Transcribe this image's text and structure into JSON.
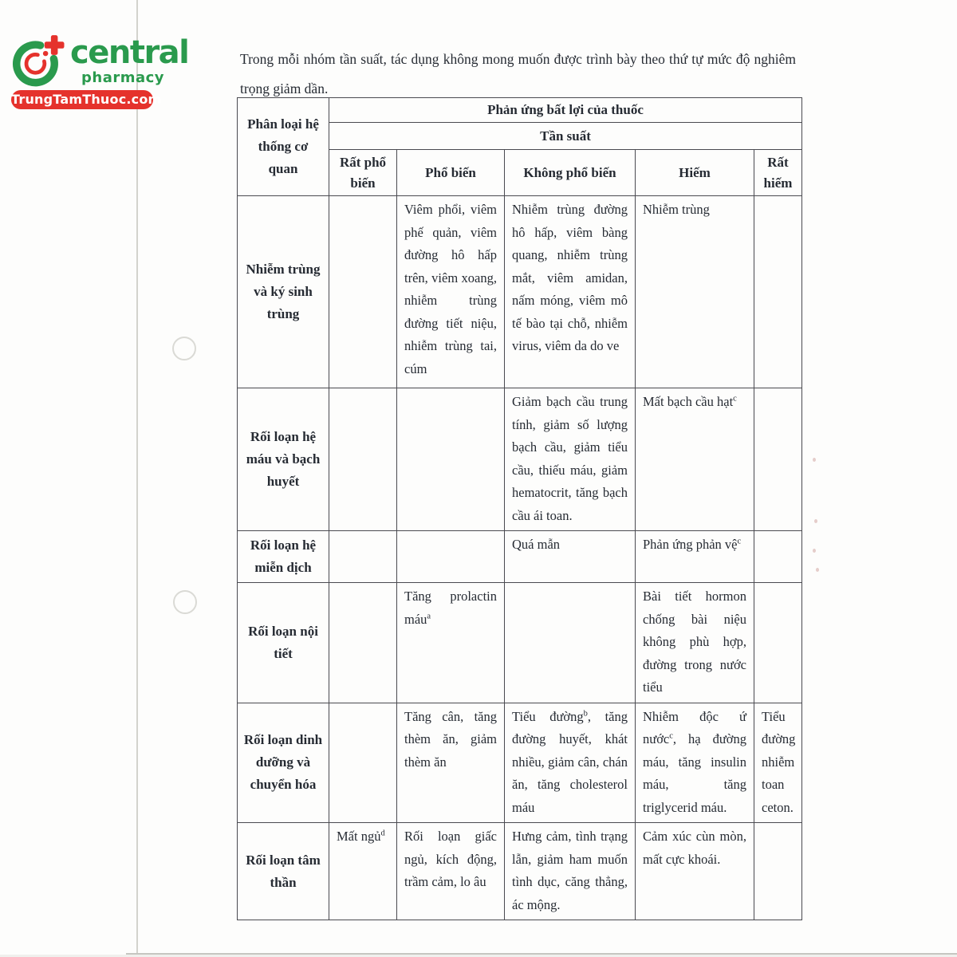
{
  "watermark": {
    "brand": "central",
    "brand_sub": "pharmacy",
    "badge": "TrungTamThuoc.com",
    "icon": "central-pharmacy-ring-plus-icon"
  },
  "colors": {
    "brand_green": "#2a9a4d",
    "brand_red": "#e5322c",
    "text": "#262b33",
    "table_border": "#4a4a50"
  },
  "intro": "Trong mỗi nhóm tần suất, tác dụng không mong muốn được trình bày theo thứ tự mức độ nghiêm trọng giảm dần.",
  "table": {
    "organ_col_header": "Phân loại hệ thống cơ quan",
    "adr_header": "Phản ứng bất lợi của thuốc",
    "frequency_header": "Tần suất",
    "frequency_columns": [
      "Rất phổ biến",
      "Phổ biến",
      "Không phổ biến",
      "Hiếm",
      "Rất hiếm"
    ],
    "rows": [
      {
        "category": "Nhiễm trùng và ký sinh trùng",
        "cells": [
          [],
          [
            {
              "t": "Viêm phổi, viêm phế quản, viêm đường hô hấp trên, viêm xoang, nhiễm trùng đường tiết niệu, nhiễm trùng tai, cúm"
            }
          ],
          [
            {
              "t": "Nhiễm trùng đường hô hấp, viêm bàng quang, nhiễm trùng mắt, viêm amidan, nấm móng, viêm mô tế bào tại chỗ, nhiễm virus, viêm da do ve"
            }
          ],
          [
            {
              "t": "Nhiễm trùng"
            }
          ],
          []
        ]
      },
      {
        "category": "Rối loạn hệ máu và bạch huyết",
        "cells": [
          [],
          [],
          [
            {
              "t": "Giảm bạch cầu trung tính, giảm số lượng bạch cầu, giảm tiểu cầu, thiếu máu, giảm hematocrit, tăng bạch cầu ái toan."
            }
          ],
          [
            {
              "t": "Mất bạch cầu hạt",
              "sup": "c"
            }
          ],
          []
        ]
      },
      {
        "category": "Rối loạn hệ miễn dịch",
        "cells": [
          [],
          [],
          [
            {
              "t": "Quá mẫn"
            }
          ],
          [
            {
              "t": "Phản ứng phản vệ",
              "sup": "c"
            }
          ],
          []
        ]
      },
      {
        "category": "Rối loạn nội tiết",
        "cells": [
          [],
          [
            {
              "t": "Tăng prolactin máu",
              "sup": "a"
            }
          ],
          [],
          [
            {
              "t": "Bài tiết hormon chống bài niệu không phù hợp, đường trong nước tiểu"
            }
          ],
          []
        ]
      },
      {
        "category": "Rối loạn dinh dưỡng và chuyển hóa",
        "cells": [
          [],
          [
            {
              "t": "Tăng cân, tăng thèm ăn, giảm thèm ăn"
            }
          ],
          [
            {
              "t": "Tiểu đường",
              "sup": "b"
            },
            {
              "t": ", tăng đường huyết, khát nhiều, giảm cân, chán ăn, tăng cholesterol máu"
            }
          ],
          [
            {
              "t": "Nhiễm độc ứ nước",
              "sup": "c"
            },
            {
              "t": ", hạ đường máu, tăng insulin máu, tăng triglycerid máu."
            }
          ],
          [
            {
              "t": "Tiểu đường nhiễm toan ceton."
            }
          ]
        ]
      },
      {
        "category": "Rối loạn tâm thần",
        "cells": [
          [
            {
              "t": "Mất ngủ",
              "sup": "d"
            }
          ],
          [
            {
              "t": "Rối loạn giấc ngủ, kích động, trầm cảm, lo âu"
            }
          ],
          [
            {
              "t": "Hưng cảm, tình trạng lẫn, giảm ham muốn tình dục, căng thẳng, ác mộng."
            }
          ],
          [
            {
              "t": "Cảm xúc cùn mòn, mất cực khoái."
            }
          ],
          []
        ]
      }
    ]
  }
}
